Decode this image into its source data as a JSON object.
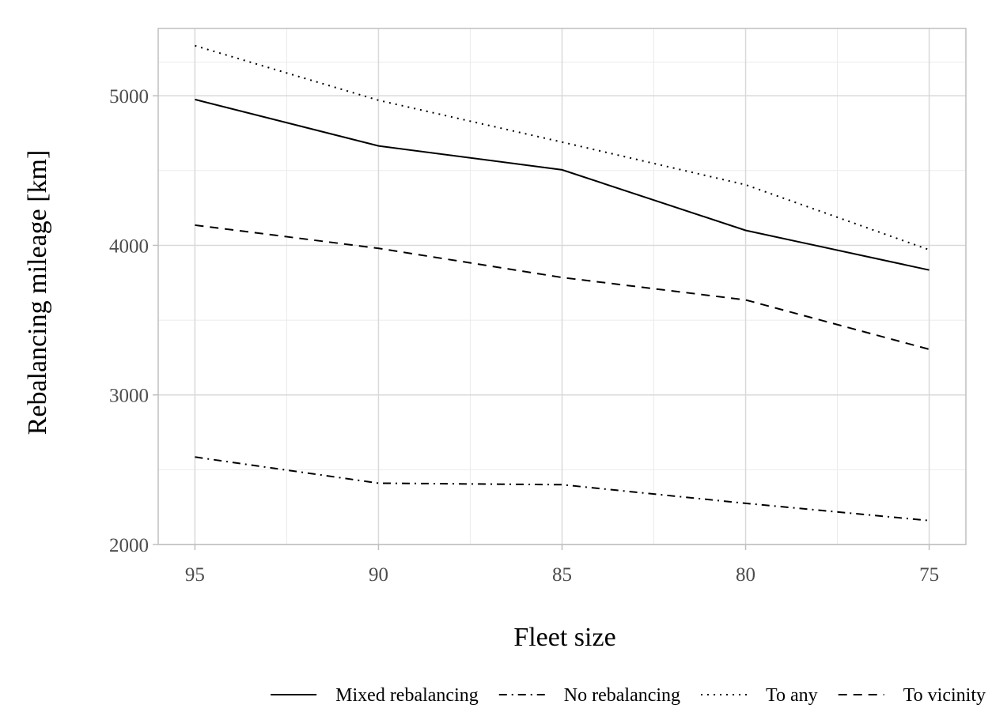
{
  "chart_data": {
    "type": "line",
    "title": "",
    "xlabel": "Fleet size",
    "ylabel": "Rebalancing mileage [km]",
    "x": [
      95,
      90,
      85,
      80,
      75
    ],
    "x_tick_labels": [
      "95",
      "90",
      "85",
      "80",
      "75"
    ],
    "x_reversed": true,
    "xlim": [
      96,
      74
    ],
    "ylim": [
      2000,
      5450
    ],
    "y_ticks": [
      2000,
      3000,
      4000,
      5000
    ],
    "y_tick_labels": [
      "2000",
      "3000",
      "4000",
      "5000"
    ],
    "grid": true,
    "legend_position": "bottom",
    "series": [
      {
        "name": "Mixed rebalancing",
        "dash": "solid",
        "values": [
          4975,
          4665,
          4505,
          4100,
          3835
        ]
      },
      {
        "name": "No rebalancing",
        "dash": "dashdot",
        "values": [
          2585,
          2410,
          2400,
          2275,
          2160
        ]
      },
      {
        "name": "To any",
        "dash": "dotted",
        "values": [
          5335,
          4970,
          4690,
          4405,
          3970
        ]
      },
      {
        "name": "To vicinity",
        "dash": "dashed",
        "values": [
          4135,
          3980,
          3785,
          3635,
          3305
        ]
      }
    ],
    "colors": {
      "line": "#000000",
      "grid_major": "#d9d9d9",
      "grid_minor": "#ebebeb",
      "panel_border": "#bfbfbf",
      "tick_text": "#4d4d4d"
    }
  }
}
